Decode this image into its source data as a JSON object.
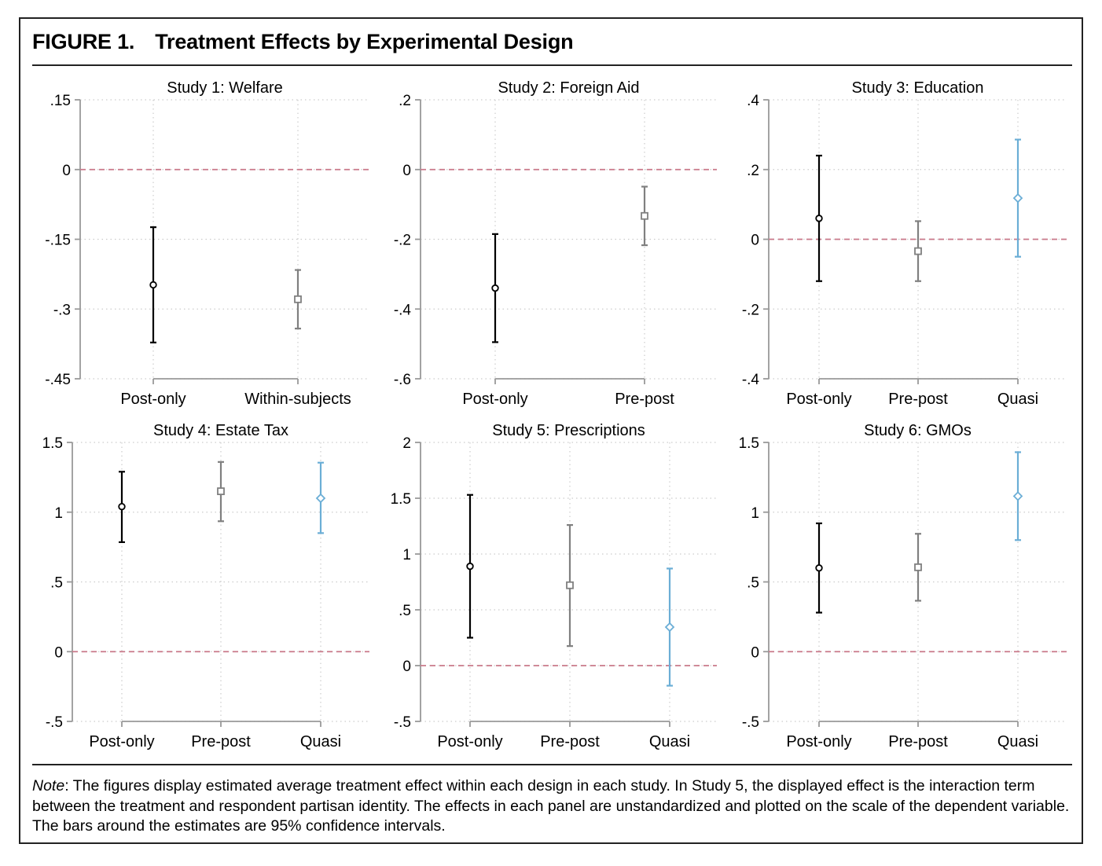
{
  "figure": {
    "label": "FIGURE 1.",
    "title": "Treatment Effects by Experimental Design"
  },
  "note": {
    "lead": "Note",
    "text": ": The figures display estimated average treatment effect within each design in each study. In Study 5, the displayed effect is the interaction term between the treatment and respondent partisan identity. The effects in each panel are unstandardized and plotted on the scale of the dependent variable. The bars around the estimates are 95% confidence intervals."
  },
  "colors": {
    "post_only": "#000000",
    "pre_post": "#808080",
    "within_subjects": "#808080",
    "quasi": "#6baed6",
    "zero_line": "#c9798a",
    "grid": "#cccccc",
    "axis": "#999999"
  },
  "chart_data": [
    {
      "type": "scatter",
      "title": "Study 1: Welfare",
      "categories": [
        "Post-only",
        "Within-subjects"
      ],
      "yticks": [
        ".15",
        "0",
        "-.15",
        "-.3",
        "-.45"
      ],
      "ylim": [
        -0.45,
        0.15
      ],
      "reference_line": 0,
      "points": [
        {
          "x": "Post-only",
          "estimate": -0.248,
          "ci_low": -0.372,
          "ci_high": -0.124,
          "marker": "circle"
        },
        {
          "x": "Within-subjects",
          "estimate": -0.279,
          "ci_low": -0.342,
          "ci_high": -0.216,
          "marker": "square"
        }
      ]
    },
    {
      "type": "scatter",
      "title": "Study 2: Foreign Aid",
      "categories": [
        "Post-only",
        "Pre-post"
      ],
      "yticks": [
        ".2",
        "0",
        "-.2",
        "-.4",
        "-.6"
      ],
      "ylim": [
        -0.6,
        0.2
      ],
      "reference_line": 0,
      "points": [
        {
          "x": "Post-only",
          "estimate": -0.34,
          "ci_low": -0.495,
          "ci_high": -0.185,
          "marker": "circle"
        },
        {
          "x": "Pre-post",
          "estimate": -0.133,
          "ci_low": -0.217,
          "ci_high": -0.049,
          "marker": "square"
        }
      ]
    },
    {
      "type": "scatter",
      "title": "Study 3: Education",
      "categories": [
        "Post-only",
        "Pre-post",
        "Quasi"
      ],
      "yticks": [
        ".4",
        ".2",
        "0",
        "-.2",
        "-.4"
      ],
      "ylim": [
        -0.4,
        0.4
      ],
      "reference_line": 0,
      "points": [
        {
          "x": "Post-only",
          "estimate": 0.06,
          "ci_low": -0.12,
          "ci_high": 0.24,
          "marker": "circle"
        },
        {
          "x": "Pre-post",
          "estimate": -0.034,
          "ci_low": -0.12,
          "ci_high": 0.052,
          "marker": "square"
        },
        {
          "x": "Quasi",
          "estimate": 0.118,
          "ci_low": -0.05,
          "ci_high": 0.286,
          "marker": "diamond"
        }
      ]
    },
    {
      "type": "scatter",
      "title": "Study 4: Estate Tax",
      "categories": [
        "Post-only",
        "Pre-post",
        "Quasi"
      ],
      "yticks": [
        "1.5",
        "1",
        ".5",
        "0",
        "-.5"
      ],
      "ylim": [
        -0.5,
        1.5
      ],
      "reference_line": 0,
      "points": [
        {
          "x": "Post-only",
          "estimate": 1.04,
          "ci_low": 0.785,
          "ci_high": 1.29,
          "marker": "circle"
        },
        {
          "x": "Pre-post",
          "estimate": 1.15,
          "ci_low": 0.935,
          "ci_high": 1.36,
          "marker": "square"
        },
        {
          "x": "Quasi",
          "estimate": 1.1,
          "ci_low": 0.85,
          "ci_high": 1.355,
          "marker": "diamond"
        }
      ]
    },
    {
      "type": "scatter",
      "title": "Study 5: Prescriptions",
      "categories": [
        "Post-only",
        "Pre-post",
        "Quasi"
      ],
      "yticks": [
        "2",
        "1.5",
        "1",
        ".5",
        "0",
        "-.5"
      ],
      "ylim": [
        -0.5,
        2
      ],
      "reference_line": 0,
      "points": [
        {
          "x": "Post-only",
          "estimate": 0.89,
          "ci_low": 0.25,
          "ci_high": 1.53,
          "marker": "circle"
        },
        {
          "x": "Pre-post",
          "estimate": 0.72,
          "ci_low": 0.175,
          "ci_high": 1.26,
          "marker": "square"
        },
        {
          "x": "Quasi",
          "estimate": 0.345,
          "ci_low": -0.18,
          "ci_high": 0.87,
          "marker": "diamond"
        }
      ]
    },
    {
      "type": "scatter",
      "title": "Study 6: GMOs",
      "categories": [
        "Post-only",
        "Pre-post",
        "Quasi"
      ],
      "yticks": [
        "1.5",
        "1",
        ".5",
        "0",
        "-.5"
      ],
      "ylim": [
        -0.5,
        1.5
      ],
      "reference_line": 0,
      "points": [
        {
          "x": "Post-only",
          "estimate": 0.6,
          "ci_low": 0.28,
          "ci_high": 0.92,
          "marker": "circle"
        },
        {
          "x": "Pre-post",
          "estimate": 0.605,
          "ci_low": 0.365,
          "ci_high": 0.845,
          "marker": "square"
        },
        {
          "x": "Quasi",
          "estimate": 1.115,
          "ci_low": 0.8,
          "ci_high": 1.43,
          "marker": "diamond"
        }
      ]
    }
  ]
}
